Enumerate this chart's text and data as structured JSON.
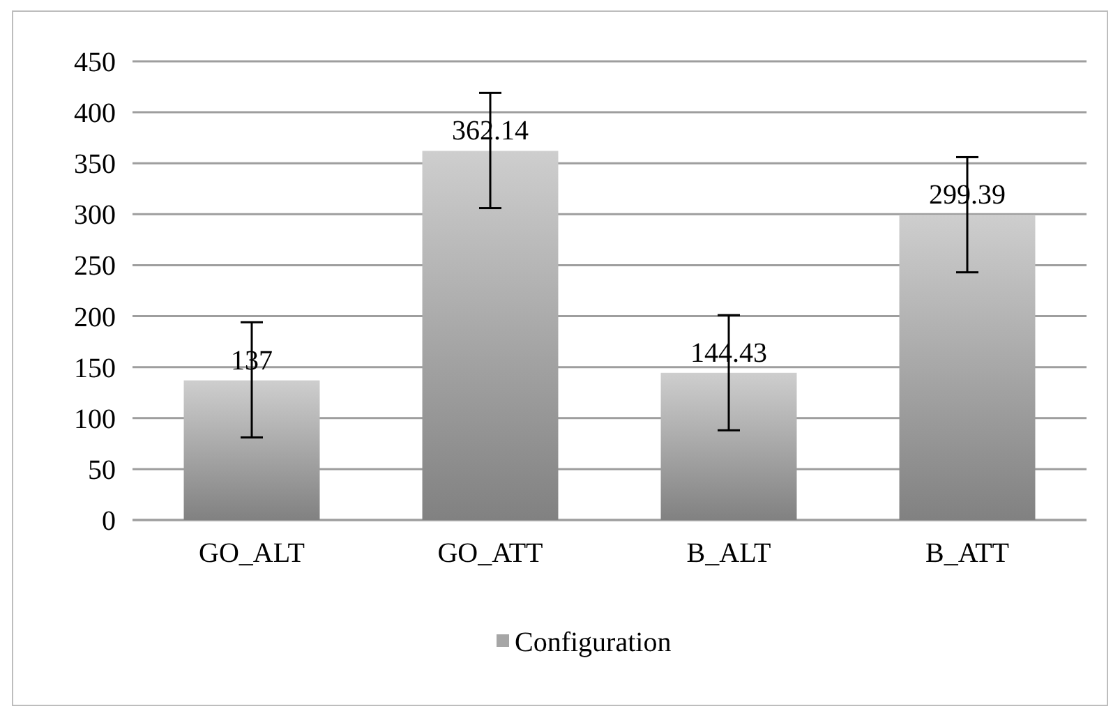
{
  "chart_data": {
    "type": "bar",
    "categories": [
      "GO_ALT",
      "GO_ATT",
      "B_ALT",
      "B_ATT"
    ],
    "series": [
      {
        "name": "Configuration",
        "color": "#a6a6a6",
        "values": [
          137,
          362.14,
          144.43,
          299.39
        ],
        "errors": [
          [
            81,
            194
          ],
          [
            306,
            419
          ],
          [
            88,
            201
          ],
          [
            243,
            356
          ]
        ]
      }
    ],
    "ylim": [
      0,
      450
    ],
    "yticks": [
      0,
      50,
      100,
      150,
      200,
      250,
      300,
      350,
      400,
      450
    ],
    "grid": "y",
    "legend": "bottom",
    "data_labels": true
  }
}
